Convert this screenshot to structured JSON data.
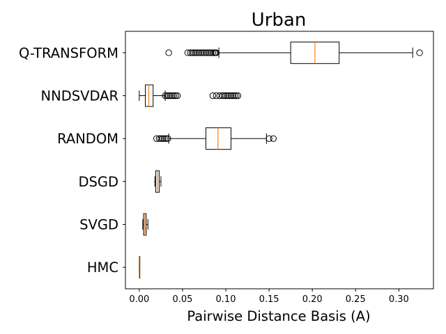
{
  "chart_data": {
    "type": "boxplot",
    "orientation": "horizontal",
    "title": "Urban",
    "xlabel": "Pairwise Distance Basis (A)",
    "ylabel": "",
    "xlim": [
      -0.016,
      0.34
    ],
    "xticks": [
      0.0,
      0.05,
      0.1,
      0.15,
      0.2,
      0.25,
      0.3
    ],
    "xtick_labels": [
      "0.00",
      "0.05",
      "0.10",
      "0.15",
      "0.20",
      "0.25",
      "0.30"
    ],
    "median_color": "#ff7f0e",
    "box_color": "#000000",
    "categories": [
      "Q-TRANSFORM",
      "NNDSVDAR",
      "RANDOM",
      "DSGD",
      "SVGD",
      "HMC"
    ],
    "series": [
      {
        "name": "Q-TRANSFORM",
        "whisker_low": 0.092,
        "q1": 0.175,
        "median": 0.203,
        "q3": 0.231,
        "whisker_high": 0.316,
        "outliers": [
          0.034,
          0.056,
          0.059,
          0.061,
          0.063,
          0.065,
          0.067,
          0.069,
          0.071,
          0.073,
          0.075,
          0.077,
          0.079,
          0.081,
          0.083,
          0.085,
          0.087,
          0.088,
          0.089,
          0.324
        ]
      },
      {
        "name": "NNDSVDAR",
        "whisker_low": 0.0,
        "q1": 0.007,
        "median": 0.011,
        "q3": 0.016,
        "whisker_high": 0.03,
        "outliers": [
          0.03,
          0.032,
          0.034,
          0.036,
          0.038,
          0.04,
          0.042,
          0.044,
          0.085,
          0.089,
          0.093,
          0.096,
          0.098,
          0.1,
          0.102,
          0.104,
          0.106,
          0.108,
          0.11,
          0.112,
          0.114
        ]
      },
      {
        "name": "RANDOM",
        "whisker_low": 0.034,
        "q1": 0.077,
        "median": 0.091,
        "q3": 0.106,
        "whisker_high": 0.147,
        "outliers": [
          0.02,
          0.023,
          0.025,
          0.027,
          0.029,
          0.031,
          0.033,
          0.15,
          0.155
        ]
      },
      {
        "name": "DSGD",
        "whisker_low": 0.018,
        "q1": 0.019,
        "median": 0.021,
        "q3": 0.023,
        "whisker_high": 0.025,
        "outliers": []
      },
      {
        "name": "SVGD",
        "whisker_low": 0.004,
        "q1": 0.005,
        "median": 0.0065,
        "q3": 0.008,
        "whisker_high": 0.01,
        "outliers": []
      },
      {
        "name": "HMC",
        "whisker_low": 0.0,
        "q1": 0.0,
        "median": 0.0,
        "q3": 0.0005,
        "whisker_high": 0.0005,
        "outliers": []
      }
    ]
  }
}
